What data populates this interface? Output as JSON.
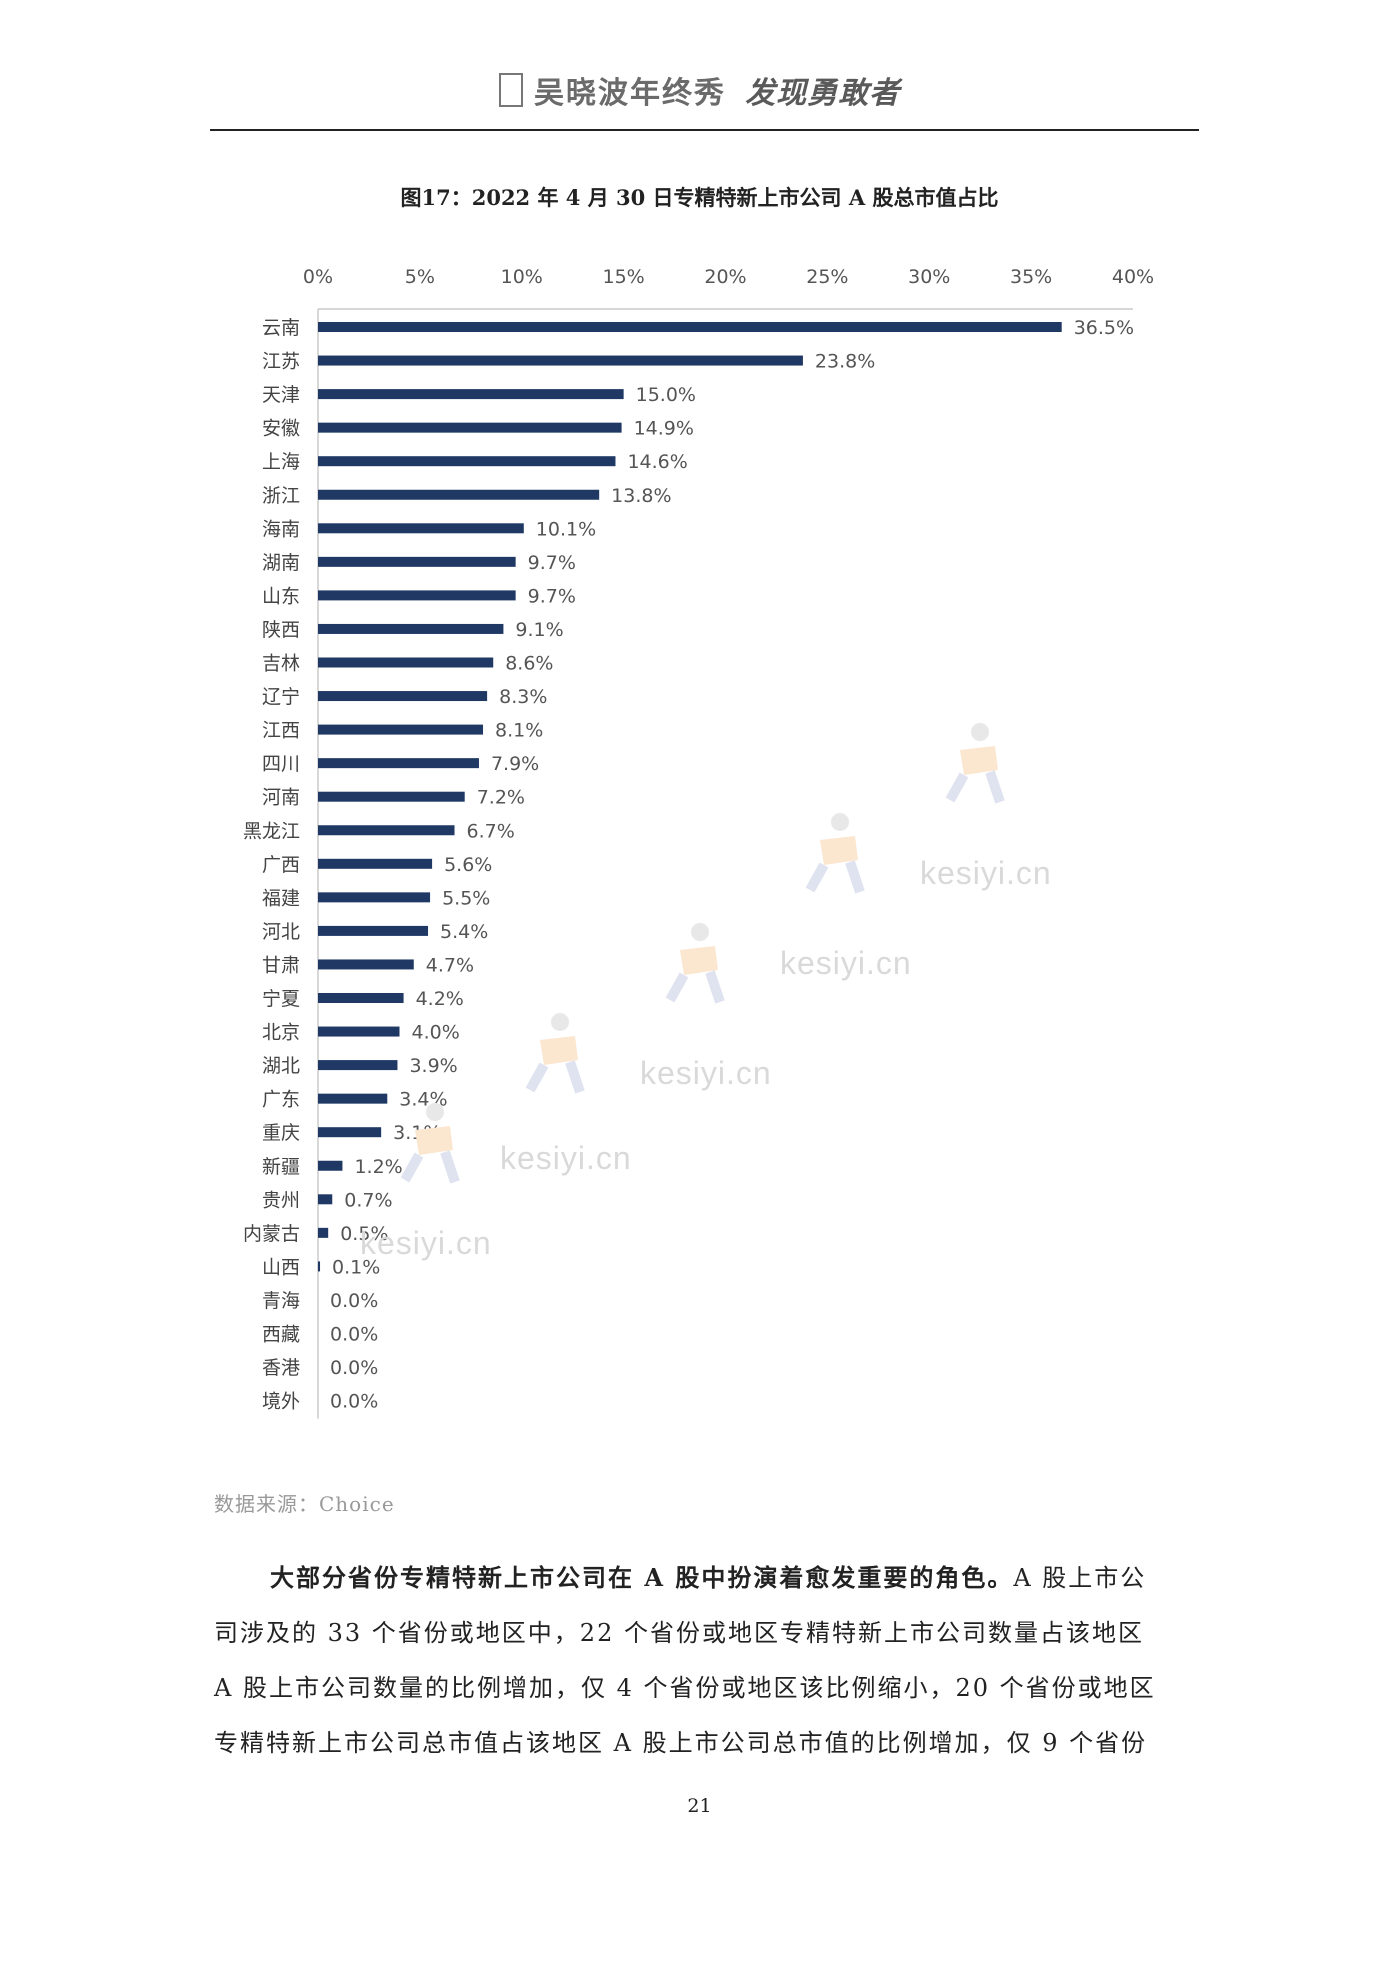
{
  "header": {
    "title": "吴晓波年终秀",
    "brand": "发现勇敢者"
  },
  "figure_title": "图17：2022 年 4 月 30 日专精特新上市公司 A 股总市值占比",
  "chart_data": {
    "type": "bar",
    "orientation": "horizontal",
    "title": "图17：2022 年 4 月 30 日专精特新上市公司 A 股总市值占比",
    "categories": [
      "云南",
      "江苏",
      "天津",
      "安徽",
      "上海",
      "浙江",
      "海南",
      "湖南",
      "山东",
      "陕西",
      "吉林",
      "辽宁",
      "江西",
      "四川",
      "河南",
      "黑龙江",
      "广西",
      "福建",
      "河北",
      "甘肃",
      "宁夏",
      "北京",
      "湖北",
      "广东",
      "重庆",
      "新疆",
      "贵州",
      "内蒙古",
      "山西",
      "青海",
      "西藏",
      "香港",
      "境外"
    ],
    "values": [
      36.5,
      23.8,
      15.0,
      14.9,
      14.6,
      13.8,
      10.1,
      9.7,
      9.7,
      9.1,
      8.6,
      8.3,
      8.1,
      7.9,
      7.2,
      6.7,
      5.6,
      5.5,
      5.4,
      4.7,
      4.2,
      4.0,
      3.9,
      3.4,
      3.1,
      1.2,
      0.7,
      0.5,
      0.1,
      0.0,
      0.0,
      0.0,
      0.0
    ],
    "data_labels": [
      "36.5%",
      "23.8%",
      "15.0%",
      "14.9%",
      "14.6%",
      "13.8%",
      "10.1%",
      "9.7%",
      "9.7%",
      "9.1%",
      "8.6%",
      "8.3%",
      "8.1%",
      "7.9%",
      "7.2%",
      "6.7%",
      "5.6%",
      "5.5%",
      "5.4%",
      "4.7%",
      "4.2%",
      "4.0%",
      "3.9%",
      "3.4%",
      "3.1%",
      "1.2%",
      "0.7%",
      "0.5%",
      "0.1%",
      "0.0%",
      "0.0%",
      "0.0%",
      "0.0%"
    ],
    "xlim": [
      0,
      40
    ],
    "x_ticks": [
      "0%",
      "5%",
      "10%",
      "15%",
      "20%",
      "25%",
      "30%",
      "35%",
      "40%"
    ],
    "axis_position": "top",
    "grid": false,
    "bar_color": "#1f3864"
  },
  "source": "数据来源：Choice",
  "paragraph": {
    "lead": "大部分省份专精特新上市公司在 A 股中扮演着愈发重要的角色。",
    "line1_rest": "A 股上市公",
    "line2": "司涉及的 33 个省份或地区中，22 个省份或地区专精特新上市公司数量占该地区",
    "line3": "A 股上市公司数量的比例增加，仅 4 个省份或地区该比例缩小，20 个省份或地区",
    "line4": "专精特新上市公司总市值占该地区 A 股上市公司总市值的比例增加，仅 9 个省份"
  },
  "page_number": "21",
  "watermark": "kesiyi.cn"
}
